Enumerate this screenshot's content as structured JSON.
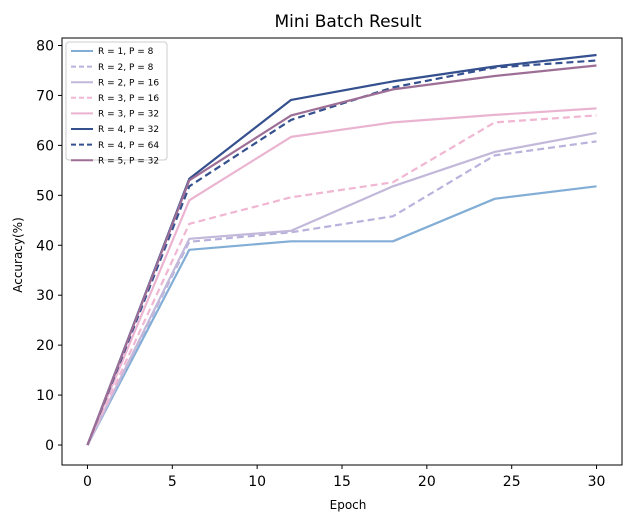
{
  "chart_data": {
    "type": "line",
    "title": "Mini Batch Result",
    "xlabel": "Epoch",
    "ylabel": "Accuracy(%)",
    "xlim": [
      -1.5,
      31.5
    ],
    "ylim": [
      -4,
      81.5
    ],
    "xticks": [
      0,
      5,
      10,
      15,
      20,
      25,
      30
    ],
    "yticks": [
      0,
      10,
      20,
      30,
      40,
      50,
      60,
      70,
      80
    ],
    "grid": false,
    "legend_position": "top-left",
    "x": [
      0,
      6,
      12,
      18,
      24,
      30
    ],
    "series": [
      {
        "name": "R = 1, P = 8",
        "color": "#82aed6",
        "dash": "solid",
        "values": [
          0,
          39.1,
          40.8,
          40.8,
          49.3,
          51.8
        ]
      },
      {
        "name": "R = 2, P = 8",
        "color": "#b9b2dc",
        "dash": "dashed",
        "values": [
          0,
          40.7,
          42.6,
          45.8,
          58.0,
          60.8
        ]
      },
      {
        "name": "R = 2, P = 16",
        "color": "#c2b8d9",
        "dash": "solid",
        "values": [
          0,
          41.3,
          42.9,
          51.8,
          58.7,
          62.5
        ]
      },
      {
        "name": "R = 3, P = 16",
        "color": "#f0b6d2",
        "dash": "dashed",
        "values": [
          0,
          44.3,
          49.6,
          52.6,
          64.6,
          66.0
        ]
      },
      {
        "name": "R = 3, P = 32",
        "color": "#eab4d1",
        "dash": "solid",
        "values": [
          0,
          49.0,
          61.7,
          64.6,
          66.1,
          67.4
        ]
      },
      {
        "name": "R = 4, P = 32",
        "color": "#34508e",
        "dash": "solid",
        "values": [
          0,
          53.3,
          69.1,
          72.8,
          75.8,
          78.1
        ]
      },
      {
        "name": "R = 4, P = 64",
        "color": "#34508e",
        "dash": "dashed",
        "values": [
          0,
          51.8,
          65.1,
          71.6,
          75.6,
          77.0
        ]
      },
      {
        "name": "R = 5, P = 32",
        "color": "#9e6f96",
        "dash": "solid",
        "values": [
          0,
          53.0,
          66.0,
          71.2,
          73.9,
          76.0
        ]
      }
    ]
  }
}
